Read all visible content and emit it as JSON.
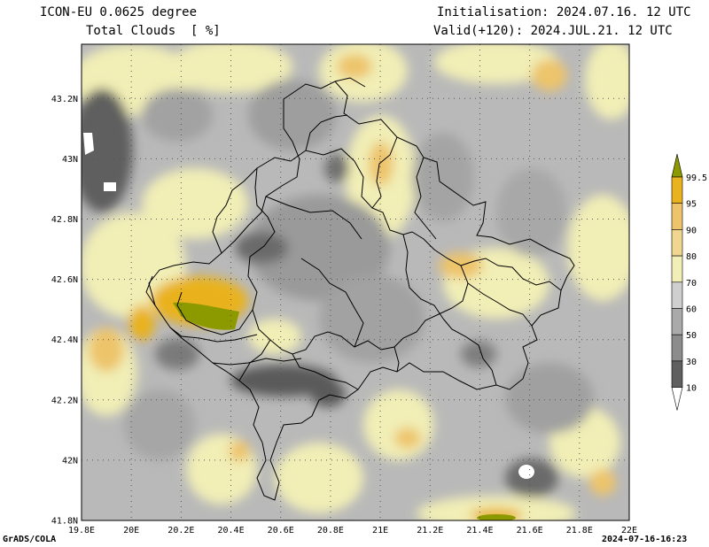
{
  "header": {
    "model": "ICON-EU 0.0625 degree",
    "field": "Total Clouds  [ %]",
    "init": "Initialisation: 2024.07.16. 12 UTC",
    "valid": "Valid(+120): 2024.JUL.21. 12 UTC"
  },
  "map": {
    "lat_labels": [
      "43.2N",
      "43N",
      "42.8N",
      "42.6N",
      "42.4N",
      "42.2N",
      "42N",
      "41.8N"
    ],
    "lon_labels": [
      "19.8E",
      "20E",
      "20.2E",
      "20.4E",
      "20.6E",
      "20.8E",
      "21E",
      "21.2E",
      "21.4E",
      "21.6E",
      "21.8E",
      "22E"
    ],
    "lat_values": [
      43.2,
      43.0,
      42.8,
      42.6,
      42.4,
      42.2,
      42.0,
      41.8
    ],
    "lon_values": [
      19.8,
      20.0,
      20.2,
      20.4,
      20.6,
      20.8,
      21.0,
      21.2,
      21.4,
      21.6,
      21.8,
      22.0
    ],
    "lat_range": [
      41.8,
      43.38
    ],
    "lon_range": [
      19.8,
      22.0
    ],
    "grid": true,
    "grid_style": "dotted"
  },
  "colorbar": {
    "labels": [
      "99.5",
      "95",
      "90",
      "80",
      "70",
      "60",
      "50",
      "30",
      "10"
    ],
    "colors": [
      "#8c9a00",
      "#e9b21f",
      "#edc46a",
      "#f0d68f",
      "#f1eeb6",
      "#cfcfcf",
      "#aaaaaa",
      "#8c8c8c",
      "#5f5f5f",
      "#ffffff"
    ],
    "placement": "right"
  },
  "footer": {
    "left": "GrADS/COLA",
    "right": "2024-07-16-16:23"
  }
}
